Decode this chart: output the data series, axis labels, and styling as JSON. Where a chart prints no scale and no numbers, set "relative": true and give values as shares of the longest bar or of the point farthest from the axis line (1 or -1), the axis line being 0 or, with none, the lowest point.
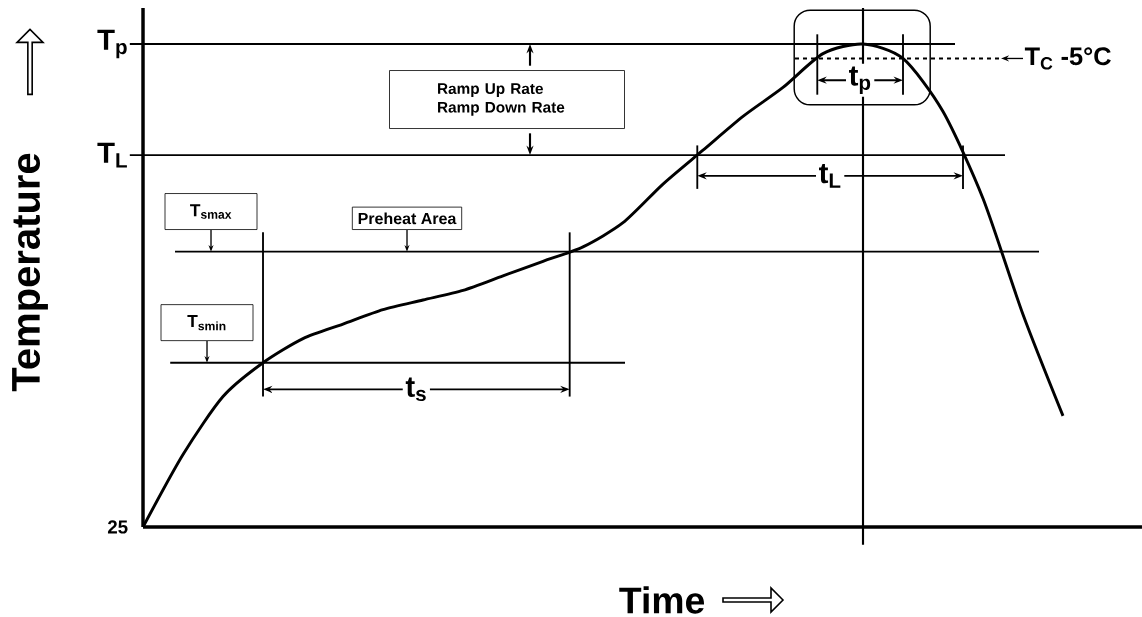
{
  "chart_data": {
    "type": "line",
    "relative": true,
    "xlabel": "Time",
    "ylabel": "Temperature",
    "categories": [
      null,
      null,
      null,
      null,
      null,
      null,
      null,
      null,
      null,
      null,
      null,
      null,
      null,
      null,
      null,
      null,
      null,
      null,
      null,
      null,
      null,
      null,
      null,
      null
    ],
    "values": [
      0,
      0.15,
      0.27,
      0.34,
      0.39,
      0.42,
      0.45,
      0.47,
      0.49,
      0.52,
      0.55,
      0.58,
      0.63,
      0.71,
      0.78,
      0.85,
      0.91,
      0.98,
      1,
      0.97,
      0.86,
      0.68,
      0.44,
      0.23
    ],
    "color": "#000000",
    "marker": "none",
    "line_style": "solid",
    "ref_lines": [
      {
        "axis": "y",
        "value": 1,
        "label": "T$_{p}$"
      },
      {
        "axis": "y",
        "value": 0.77,
        "label": "T$_{L}$"
      },
      {
        "axis": "y",
        "value": 0.57,
        "label": "T$_{smax}$"
      },
      {
        "axis": "y",
        "value": 0.34,
        "label": "T$_{smin}$"
      },
      {
        "axis": "y",
        "value": 0.97,
        "label": "T$_{C}$ -5°C",
        "line_style": "dashed"
      }
    ],
    "annotations": [
      "Ramp Up Rate",
      "Ramp Down Rate",
      "Preheat Area",
      "t$_{s}$",
      "t$_{L}$",
      "t$_{p}$",
      "25"
    ]
  }
}
